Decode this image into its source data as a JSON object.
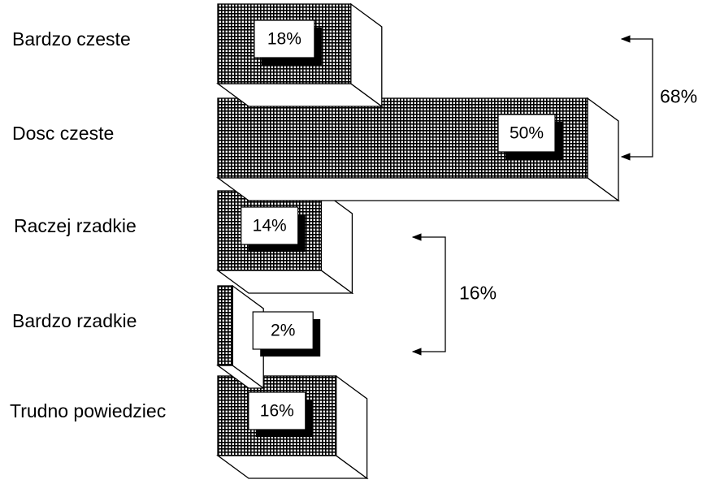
{
  "chart_data": {
    "type": "bar",
    "orientation": "horizontal",
    "three_d": true,
    "categories": [
      "Bardzo czeste",
      "Dosc czeste",
      "Raczej rzadkie",
      "Bardzo rzadkie",
      "Trudno powiedziec"
    ],
    "values": [
      18,
      50,
      14,
      2,
      16
    ],
    "value_labels": [
      "18%",
      "50%",
      "14%",
      "2%",
      "16%"
    ],
    "title": "",
    "xlabel": "",
    "ylabel": "",
    "xlim": [
      0,
      50
    ],
    "grid": false,
    "legend": "none",
    "fill_pattern": "crosshatch",
    "bar_color": "#000000",
    "brackets": [
      {
        "from": "Bardzo czeste",
        "to": "Dosc czeste",
        "label": "68%"
      },
      {
        "from": "Raczej rzadkie",
        "to": "Bardzo rzadkie",
        "label": "16%"
      }
    ]
  }
}
